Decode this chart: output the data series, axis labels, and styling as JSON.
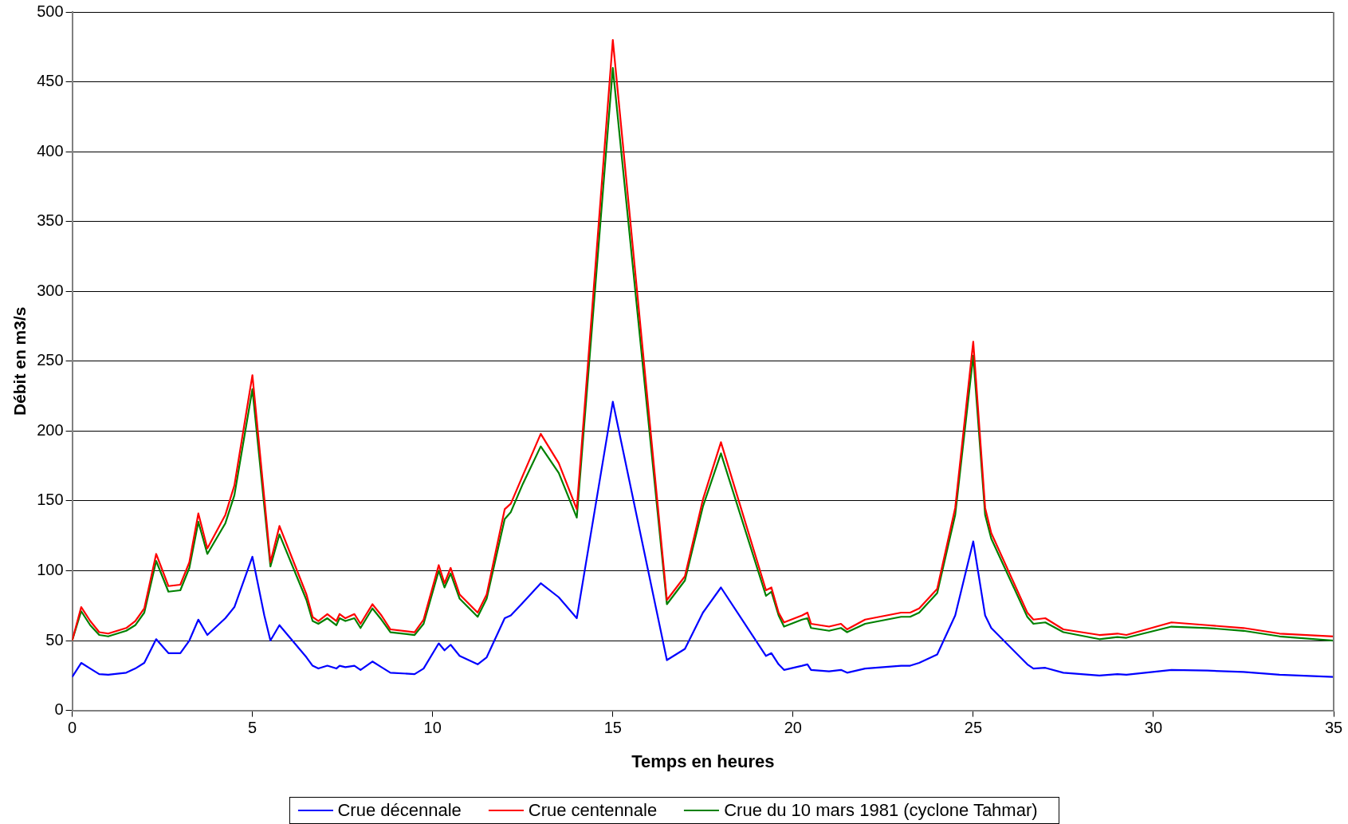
{
  "chart_data": {
    "type": "line",
    "xlabel": "Temps en heures",
    "ylabel": "Débit en m3/s",
    "x": [
      0,
      0.25,
      0.5,
      0.75,
      1,
      1.5,
      1.75,
      2,
      2.33,
      2.67,
      3,
      3.25,
      3.5,
      3.75,
      4.25,
      4.5,
      5,
      5.33,
      5.5,
      5.75,
      6.5,
      6.67,
      6.83,
      7.08,
      7.33,
      7.42,
      7.58,
      7.83,
      8,
      8.33,
      8.58,
      8.83,
      9.5,
      9.75,
      10.17,
      10.33,
      10.5,
      10.75,
      11.25,
      11.5,
      12,
      12.17,
      12.5,
      13,
      13.5,
      14,
      15,
      16.5,
      17,
      17.5,
      18,
      19.25,
      19.4,
      19.6,
      19.75,
      20.25,
      20.4,
      20.5,
      21,
      21.33,
      21.5,
      22,
      23,
      23.25,
      23.5,
      24,
      24.5,
      25,
      25.33,
      25.5,
      26.5,
      26.67,
      27,
      27.5,
      28.5,
      29,
      29.25,
      30.5,
      31.5,
      32.5,
      33.5,
      35
    ],
    "series": [
      {
        "name": "Crue décennale",
        "color": "#0000ff",
        "values": [
          24,
          34,
          30,
          26,
          25.5,
          27,
          30,
          34,
          51,
          41,
          41,
          50,
          65,
          54,
          66,
          74,
          110,
          68,
          50,
          61,
          38,
          32,
          30,
          32,
          30,
          32,
          31,
          32,
          29,
          35,
          31,
          27,
          26,
          30,
          48,
          43,
          47,
          39,
          33,
          38,
          66,
          68,
          77,
          91,
          81,
          66,
          221,
          36,
          44,
          70,
          88,
          39,
          41,
          33,
          29,
          32,
          33,
          29,
          28,
          29,
          27,
          30,
          32,
          32,
          34,
          40,
          68,
          121,
          68,
          59,
          33,
          30,
          30.5,
          27,
          25,
          26,
          25.5,
          29,
          28.5,
          27.5,
          25.5,
          24
        ]
      },
      {
        "name": "Crue centennale",
        "color": "#ff0000",
        "values": [
          50,
          74,
          64,
          56,
          55,
          59,
          64,
          73,
          112,
          89,
          90,
          106,
          141,
          116,
          140,
          161,
          240,
          152,
          106,
          132,
          83,
          67,
          64,
          69,
          64,
          69,
          66,
          69,
          62,
          76,
          68,
          58,
          56,
          65,
          104,
          91,
          102,
          83,
          70,
          83,
          144,
          148,
          168,
          198,
          177,
          144,
          480,
          79,
          96,
          151,
          192,
          86,
          88,
          70,
          63,
          68,
          70,
          62,
          60,
          62,
          58,
          65,
          70,
          70,
          73,
          87,
          145,
          264,
          145,
          127,
          70,
          65,
          66,
          58,
          54,
          55,
          54,
          63,
          61,
          59,
          55,
          53
        ]
      },
      {
        "name": "Crue du 10 mars 1981 (cyclone Tahmar)",
        "color": "#008000",
        "values": [
          50,
          71,
          61,
          54,
          53,
          57,
          61,
          70,
          107,
          85,
          86,
          102,
          135,
          112,
          134,
          154,
          230,
          146,
          103,
          126,
          79,
          64,
          62,
          66,
          61,
          66,
          64,
          66,
          59,
          73,
          65,
          56,
          54,
          62,
          100,
          88,
          98,
          80,
          67,
          80,
          137,
          142,
          162,
          189,
          170,
          138,
          460,
          76,
          93,
          146,
          184,
          82,
          85,
          68,
          60,
          65,
          66,
          59,
          57,
          59,
          56,
          62,
          67,
          67,
          70,
          84,
          140,
          254,
          140,
          123,
          67,
          62,
          63,
          56,
          51,
          52.5,
          52,
          60,
          59,
          57,
          53,
          50
        ]
      }
    ],
    "xlim": [
      0,
      35
    ],
    "xticks": [
      0,
      5,
      10,
      15,
      20,
      25,
      30,
      35
    ],
    "ylim": [
      0,
      500
    ],
    "yticks": [
      0,
      50,
      100,
      150,
      200,
      250,
      300,
      350,
      400,
      450,
      500
    ],
    "grid": "y",
    "legend": "bottom",
    "marker": "none",
    "line_style": "solid"
  }
}
